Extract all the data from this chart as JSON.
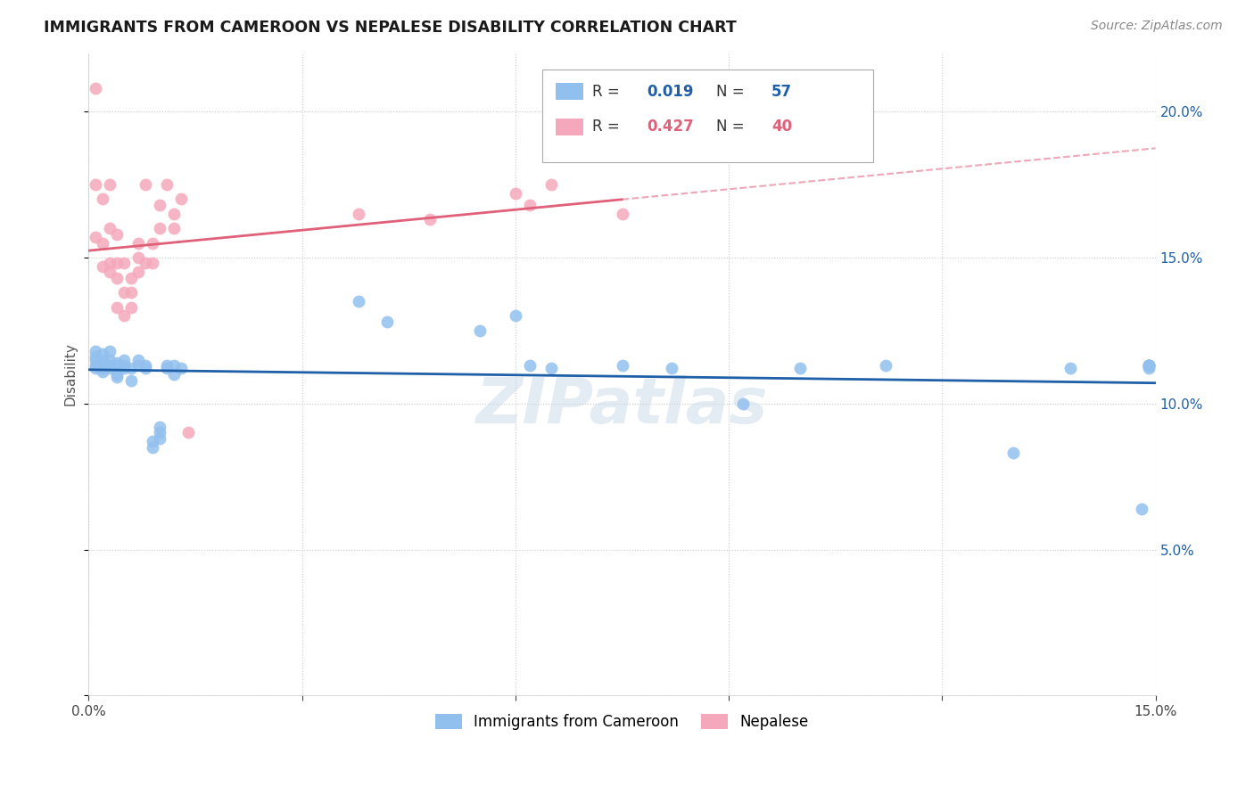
{
  "title": "IMMIGRANTS FROM CAMEROON VS NEPALESE DISABILITY CORRELATION CHART",
  "source": "Source: ZipAtlas.com",
  "ylabel": "Disability",
  "xlim": [
    0.0,
    0.15
  ],
  "ylim": [
    0.0,
    0.22
  ],
  "r_blue": 0.019,
  "n_blue": 57,
  "r_pink": 0.427,
  "n_pink": 40,
  "blue_color": "#92C0EE",
  "pink_color": "#F5A8BB",
  "blue_line_color": "#1E5FA8",
  "pink_line_color": "#E0607A",
  "watermark": "ZIPatlas",
  "blue_x": [
    0.001,
    0.001,
    0.001,
    0.001,
    0.001,
    0.002,
    0.002,
    0.002,
    0.002,
    0.002,
    0.003,
    0.003,
    0.003,
    0.003,
    0.004,
    0.004,
    0.004,
    0.004,
    0.005,
    0.005,
    0.005,
    0.006,
    0.006,
    0.007,
    0.007,
    0.008,
    0.008,
    0.009,
    0.009,
    0.01,
    0.01,
    0.01,
    0.011,
    0.011,
    0.012,
    0.012,
    0.013,
    0.038,
    0.042,
    0.055,
    0.06,
    0.062,
    0.065,
    0.075,
    0.082,
    0.092,
    0.1,
    0.112,
    0.13,
    0.138,
    0.148,
    0.149,
    0.149,
    0.149,
    0.149,
    0.149,
    0.149
  ],
  "blue_y": [
    0.115,
    0.118,
    0.116,
    0.113,
    0.112,
    0.112,
    0.115,
    0.117,
    0.113,
    0.111,
    0.113,
    0.115,
    0.118,
    0.112,
    0.113,
    0.114,
    0.11,
    0.109,
    0.115,
    0.113,
    0.112,
    0.112,
    0.108,
    0.113,
    0.115,
    0.112,
    0.113,
    0.085,
    0.087,
    0.09,
    0.092,
    0.088,
    0.112,
    0.113,
    0.113,
    0.11,
    0.112,
    0.135,
    0.128,
    0.125,
    0.13,
    0.113,
    0.112,
    0.113,
    0.112,
    0.1,
    0.112,
    0.113,
    0.083,
    0.112,
    0.064,
    0.112,
    0.113,
    0.113,
    0.113,
    0.113,
    0.113
  ],
  "pink_x": [
    0.001,
    0.001,
    0.001,
    0.002,
    0.002,
    0.002,
    0.003,
    0.003,
    0.003,
    0.003,
    0.004,
    0.004,
    0.004,
    0.004,
    0.005,
    0.005,
    0.005,
    0.006,
    0.006,
    0.006,
    0.007,
    0.007,
    0.007,
    0.008,
    0.008,
    0.009,
    0.009,
    0.01,
    0.01,
    0.011,
    0.012,
    0.012,
    0.013,
    0.014,
    0.038,
    0.048,
    0.06,
    0.062,
    0.065,
    0.075
  ],
  "pink_y": [
    0.208,
    0.175,
    0.157,
    0.17,
    0.155,
    0.147,
    0.175,
    0.16,
    0.148,
    0.145,
    0.158,
    0.148,
    0.143,
    0.133,
    0.148,
    0.138,
    0.13,
    0.143,
    0.138,
    0.133,
    0.155,
    0.15,
    0.145,
    0.175,
    0.148,
    0.155,
    0.148,
    0.168,
    0.16,
    0.175,
    0.165,
    0.16,
    0.17,
    0.09,
    0.165,
    0.163,
    0.172,
    0.168,
    0.175,
    0.165
  ],
  "background_color": "#ffffff",
  "grid_color": "#cccccc"
}
